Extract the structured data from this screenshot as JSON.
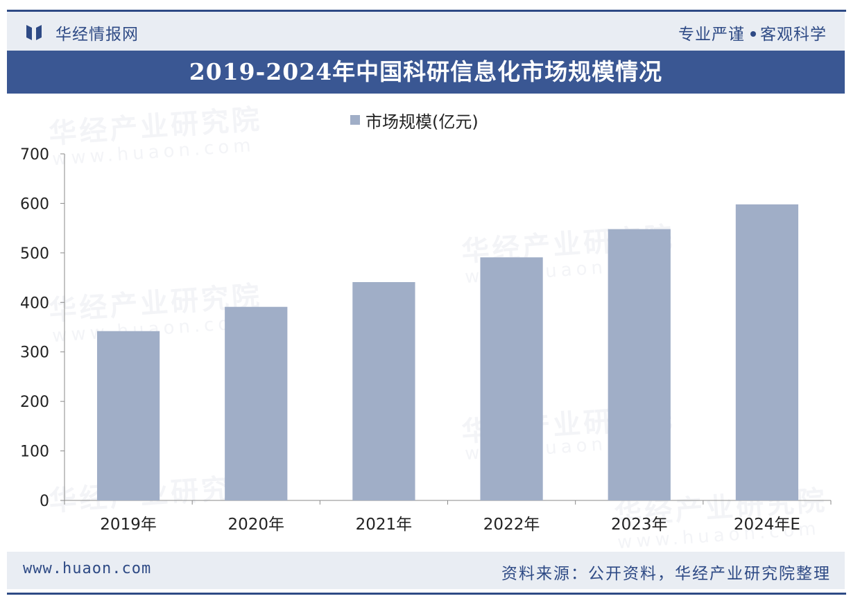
{
  "header": {
    "brand": "华经情报网",
    "slogan_left": "专业严谨",
    "slogan_right": "客观科学"
  },
  "title": "2019-2024年中国科研信息化市场规模情况",
  "legend": {
    "label": "市场规模(亿元)"
  },
  "watermark": {
    "text": "华经产业研究院",
    "site": "www.huaon.com"
  },
  "footer": {
    "site": "www.huaon.com",
    "source": "资料来源：公开资料，华经产业研究院整理"
  },
  "colors": {
    "bar": "#a0aec7",
    "accent": "#3a5793",
    "text": "#222222"
  },
  "chart_data": {
    "type": "bar",
    "title": "2019-2024年中国科研信息化市场规模情况",
    "categories": [
      "2019年",
      "2020年",
      "2021年",
      "2022年",
      "2023年",
      "2024年E"
    ],
    "series": [
      {
        "name": "市场规模(亿元)",
        "values": [
          342,
          391,
          441,
          491,
          548,
          598
        ]
      }
    ],
    "xlabel": "",
    "ylabel": "",
    "ylim": [
      0,
      700
    ],
    "yticks": [
      0,
      100,
      200,
      300,
      400,
      500,
      600,
      700
    ],
    "legend": "top-center",
    "grid": false
  }
}
